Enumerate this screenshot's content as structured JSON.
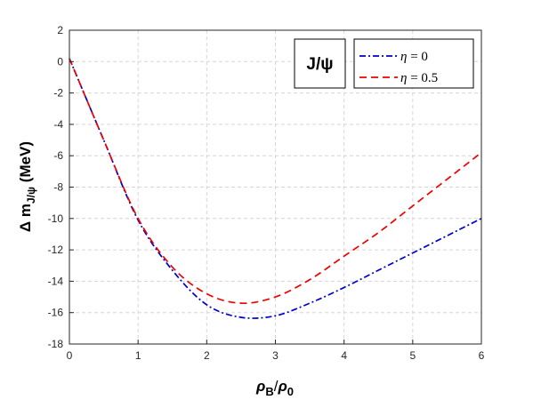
{
  "chart_data": {
    "type": "line",
    "title": "",
    "annotation": "J/ψ",
    "xlabel": {
      "main": "ρ",
      "sub1": "B",
      "sep": "/",
      "main2": "ρ",
      "sub2": "0"
    },
    "ylabel": {
      "main": "Δ m",
      "sub": "J/ψ",
      "unit": " (MeV)"
    },
    "xlim": [
      0,
      6
    ],
    "ylim": [
      -18,
      2
    ],
    "x_ticks": [
      0,
      1,
      2,
      3,
      4,
      5,
      6
    ],
    "y_ticks": [
      2,
      0,
      -2,
      -4,
      -6,
      -8,
      -10,
      -12,
      -14,
      -16,
      -18
    ],
    "grid": true,
    "legend_position": "top-right",
    "series": [
      {
        "name": "η = 0",
        "legend_symbol": "η",
        "legend_rest": " = 0",
        "color": "#0000cc",
        "dash": "dash-dot",
        "x": [
          0,
          0.5,
          1,
          1.5,
          2,
          2.5,
          3,
          3.5,
          4,
          4.5,
          5,
          5.5,
          6
        ],
        "y": [
          0.2,
          -5.0,
          -10.1,
          -13.3,
          -15.5,
          -16.3,
          -16.2,
          -15.4,
          -14.4,
          -13.3,
          -12.2,
          -11.1,
          -10.0
        ]
      },
      {
        "name": "η = 0.5",
        "legend_symbol": "η",
        "legend_rest": " = 0.5",
        "color": "#ee0000",
        "dash": "dashed",
        "x": [
          0,
          0.5,
          1,
          1.5,
          2,
          2.5,
          3,
          3.5,
          4,
          4.5,
          5,
          5.5,
          6
        ],
        "y": [
          0.2,
          -5.0,
          -10.0,
          -13.1,
          -14.8,
          -15.4,
          -15.0,
          -13.9,
          -12.4,
          -10.9,
          -9.2,
          -7.5,
          -5.8
        ]
      }
    ]
  }
}
